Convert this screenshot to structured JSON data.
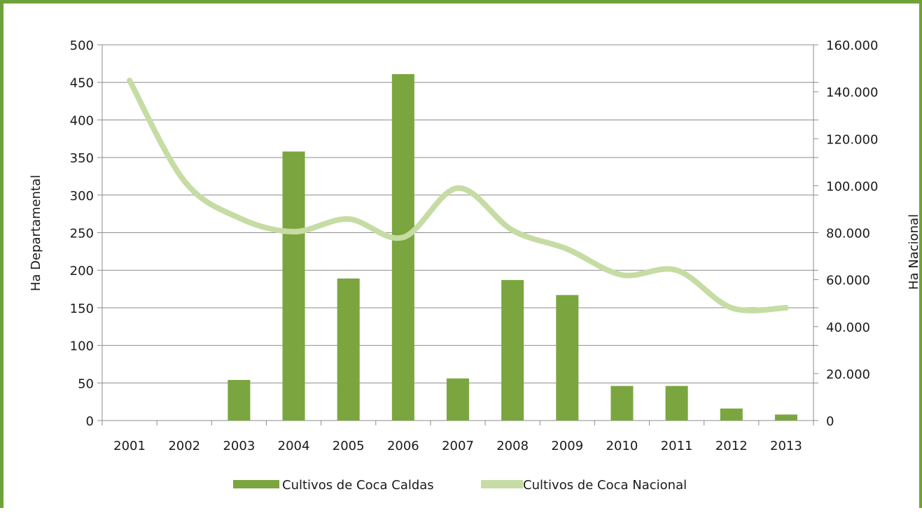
{
  "colors": {
    "frame": "#6fa23a",
    "bars": "#7ba63f",
    "line": "#c6dca4",
    "grid": "#8c8c8c",
    "text": "#1a1a1a"
  },
  "chart_data": {
    "type": "bar",
    "categories": [
      "2001",
      "2002",
      "2003",
      "2004",
      "2005",
      "2006",
      "2007",
      "2008",
      "2009",
      "2010",
      "2011",
      "2012",
      "2013"
    ],
    "series": [
      {
        "name": "Cultivos de Coca Caldas",
        "type": "bar",
        "axis": "left",
        "values": [
          0,
          0,
          54,
          358,
          189,
          461,
          56,
          187,
          167,
          46,
          46,
          16,
          8
        ]
      },
      {
        "name": "Cultivos de Coca Nacional",
        "type": "line",
        "axis": "right",
        "smooth": true,
        "values": [
          144800,
          102000,
          86300,
          80400,
          85800,
          78000,
          99000,
          81000,
          73000,
          62000,
          64000,
          48000,
          48000
        ]
      }
    ],
    "ylabel": "Ha Departamental",
    "y2label": "Ha Nacional",
    "ylim": [
      0,
      500
    ],
    "y2lim": [
      0,
      160000
    ],
    "yticks": [
      "0",
      "50",
      "100",
      "150",
      "200",
      "250",
      "300",
      "350",
      "400",
      "450",
      "500"
    ],
    "y2ticks": [
      "0",
      "20.000",
      "40.000",
      "60.000",
      "80.000",
      "100.000",
      "120.000",
      "140.000",
      "160.000"
    ],
    "grid": true,
    "legend": "bottom"
  }
}
